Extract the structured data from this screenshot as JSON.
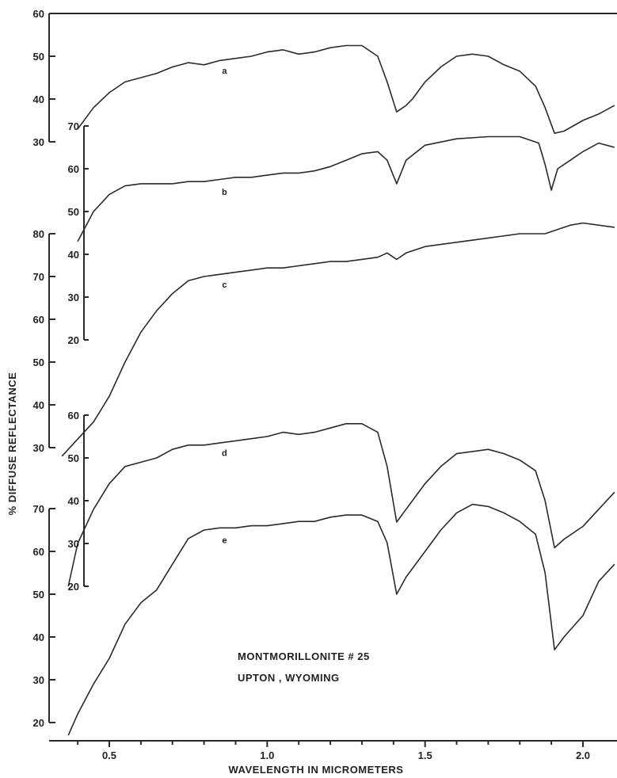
{
  "chart_data": {
    "type": "line",
    "ylabel": "% DIFFUSE REFLECTANCE",
    "xlabel": "WAVELENGTH IN MICROMETERS",
    "x_ticks": [
      "0.5",
      "1.0",
      "1.5",
      "2.0"
    ],
    "xlim": [
      0.35,
      2.1
    ],
    "annotations": [
      "MONTMORILLONITE  # 25",
      "UPTON , WYOMING"
    ],
    "series": [
      {
        "name": "a",
        "y_ticks": [
          "30",
          "40",
          "50",
          "60"
        ],
        "ylim": [
          30,
          60
        ],
        "x": [
          0.4,
          0.45,
          0.5,
          0.55,
          0.6,
          0.65,
          0.7,
          0.75,
          0.8,
          0.85,
          0.9,
          0.95,
          1.0,
          1.05,
          1.1,
          1.15,
          1.2,
          1.25,
          1.3,
          1.35,
          1.38,
          1.41,
          1.44,
          1.46,
          1.5,
          1.55,
          1.6,
          1.65,
          1.7,
          1.75,
          1.8,
          1.85,
          1.88,
          1.91,
          1.94,
          2.0,
          2.05,
          2.1
        ],
        "values": [
          33,
          38,
          41.5,
          44,
          45,
          46,
          47.5,
          48.5,
          48,
          49,
          49.5,
          50,
          51,
          51.5,
          50.5,
          51,
          52,
          52.5,
          52.5,
          50,
          44,
          37,
          38.5,
          40,
          44,
          47.5,
          50,
          50.5,
          50,
          48,
          46.5,
          43,
          38,
          32,
          32.5,
          35,
          36.5,
          38.5
        ]
      },
      {
        "name": "b",
        "y_ticks": [
          "20",
          "30",
          "40",
          "50",
          "60",
          "70"
        ],
        "ylim": [
          20,
          70
        ],
        "x": [
          0.4,
          0.45,
          0.5,
          0.55,
          0.6,
          0.65,
          0.7,
          0.75,
          0.8,
          0.85,
          0.9,
          0.95,
          1.0,
          1.05,
          1.1,
          1.15,
          1.2,
          1.25,
          1.3,
          1.35,
          1.38,
          1.41,
          1.44,
          1.5,
          1.6,
          1.7,
          1.8,
          1.86,
          1.88,
          1.9,
          1.92,
          1.96,
          2.0,
          2.05,
          2.1
        ],
        "values": [
          43,
          50,
          54,
          56,
          56.5,
          56.5,
          56.5,
          57,
          57,
          57.5,
          58,
          58,
          58.5,
          59,
          59,
          59.5,
          60.5,
          62,
          63.5,
          64,
          62,
          56.5,
          62,
          65.5,
          67,
          67.5,
          67.5,
          66,
          61,
          55,
          60,
          62,
          64,
          66,
          65
        ]
      },
      {
        "name": "c",
        "y_ticks": [
          "30",
          "40",
          "50",
          "60",
          "70",
          "80"
        ],
        "ylim": [
          30,
          80
        ],
        "x": [
          0.35,
          0.4,
          0.45,
          0.5,
          0.55,
          0.6,
          0.65,
          0.7,
          0.75,
          0.8,
          0.85,
          0.9,
          0.95,
          1.0,
          1.05,
          1.1,
          1.15,
          1.2,
          1.25,
          1.3,
          1.35,
          1.38,
          1.41,
          1.44,
          1.5,
          1.6,
          1.7,
          1.8,
          1.88,
          1.92,
          1.96,
          2.0,
          2.05,
          2.1
        ],
        "values": [
          28,
          32,
          36,
          42,
          50,
          57,
          62,
          66,
          69,
          70,
          70.5,
          71,
          71.5,
          72,
          72,
          72.5,
          73,
          73.5,
          73.5,
          74,
          74.5,
          75.5,
          74,
          75.5,
          77,
          78,
          79,
          80,
          80,
          81,
          82,
          82.5,
          82,
          81.5
        ]
      },
      {
        "name": "d",
        "y_ticks": [
          "20",
          "30",
          "40",
          "50",
          "60"
        ],
        "ylim": [
          20,
          60
        ],
        "x": [
          0.37,
          0.4,
          0.45,
          0.5,
          0.55,
          0.6,
          0.65,
          0.7,
          0.75,
          0.8,
          0.85,
          0.9,
          0.95,
          1.0,
          1.05,
          1.1,
          1.15,
          1.2,
          1.25,
          1.3,
          1.35,
          1.38,
          1.41,
          1.44,
          1.5,
          1.55,
          1.6,
          1.65,
          1.7,
          1.75,
          1.8,
          1.85,
          1.88,
          1.91,
          1.94,
          2.0,
          2.05,
          2.1
        ],
        "values": [
          20,
          30,
          38,
          44,
          48,
          49,
          50,
          52,
          53,
          53,
          53.5,
          54,
          54.5,
          55,
          56,
          55.5,
          56,
          57,
          58,
          58,
          56,
          48,
          35,
          38,
          44,
          48,
          51,
          51.5,
          52,
          51,
          49.5,
          47,
          40,
          29,
          31,
          34,
          38,
          42
        ]
      },
      {
        "name": "e",
        "y_ticks": [
          "20",
          "30",
          "40",
          "50",
          "60",
          "70"
        ],
        "ylim": [
          20,
          70
        ],
        "x": [
          0.37,
          0.4,
          0.45,
          0.5,
          0.55,
          0.6,
          0.65,
          0.7,
          0.75,
          0.8,
          0.85,
          0.9,
          0.95,
          1.0,
          1.05,
          1.1,
          1.15,
          1.2,
          1.25,
          1.3,
          1.35,
          1.38,
          1.41,
          1.44,
          1.5,
          1.55,
          1.6,
          1.65,
          1.7,
          1.75,
          1.8,
          1.85,
          1.88,
          1.91,
          1.94,
          2.0,
          2.05,
          2.1
        ],
        "values": [
          17,
          22,
          29,
          35,
          43,
          48,
          51,
          57,
          63,
          65,
          65.5,
          65.5,
          66,
          66,
          66.5,
          67,
          67,
          68,
          68.5,
          68.5,
          67,
          62,
          50,
          54,
          60,
          65,
          69,
          71,
          70.5,
          69,
          67,
          64,
          55,
          37,
          40,
          45,
          53,
          57
        ]
      }
    ]
  }
}
